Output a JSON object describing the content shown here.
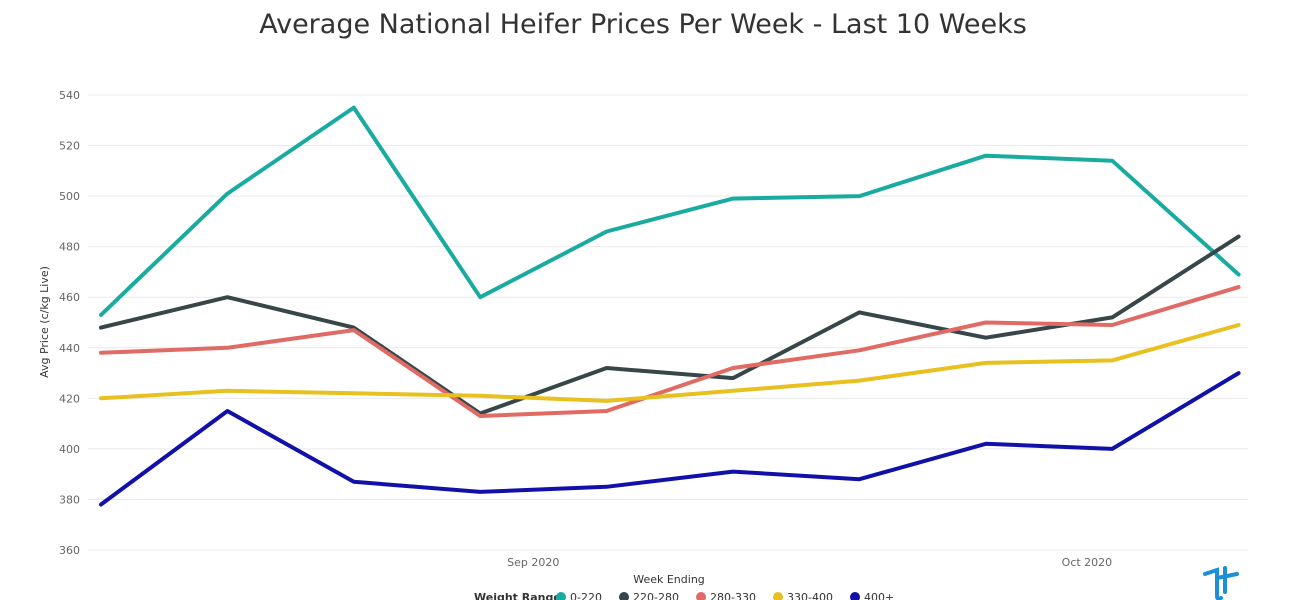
{
  "chart_data": {
    "type": "line",
    "title": "Average National Heifer Prices Per Week - Last 10 Weeks",
    "xlabel": "Week Ending",
    "ylabel": "Avg Price (c/kg Live)",
    "ylim": [
      360,
      540
    ],
    "yticks": [
      360,
      380,
      400,
      420,
      440,
      460,
      480,
      500,
      520,
      540
    ],
    "x_tick_labels": [
      {
        "label": "Sep 2020",
        "position": 3.42
      },
      {
        "label": "Oct 2020",
        "position": 7.8
      }
    ],
    "x": [
      0,
      1,
      2,
      3,
      4,
      5,
      6,
      7,
      8,
      9
    ],
    "legend": {
      "title": "Weight Range",
      "placement": "bottom"
    },
    "grid": true,
    "series": [
      {
        "name": "0-220",
        "color": "#1aaba0",
        "values": [
          453,
          501,
          535,
          460,
          486,
          499,
          500,
          516,
          514,
          469
        ]
      },
      {
        "name": "220-280",
        "color": "#374649",
        "values": [
          448,
          460,
          448,
          414,
          432,
          428,
          454,
          444,
          452,
          484
        ]
      },
      {
        "name": "280-330",
        "color": "#e06b64",
        "values": [
          438,
          440,
          447,
          413,
          415,
          432,
          439,
          450,
          449,
          464
        ]
      },
      {
        "name": "330-400",
        "color": "#e8c020",
        "values": [
          420,
          423,
          422,
          421,
          419,
          423,
          427,
          434,
          435,
          449
        ]
      },
      {
        "name": "400+",
        "color": "#1111aa",
        "values": [
          378,
          415,
          387,
          383,
          385,
          391,
          388,
          402,
          400,
          430
        ]
      }
    ]
  },
  "watermark_logo": {
    "icon": "tt-logo-icon",
    "color": "#1d8fd6"
  }
}
